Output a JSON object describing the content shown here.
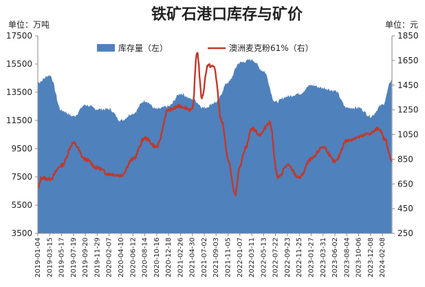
{
  "chart_data": {
    "type": "area+line",
    "title": "铁矿石港口库存与矿价",
    "left_unit": "单位：万吨",
    "right_unit": "单位：元",
    "legend_position": "top",
    "grid": false,
    "y_left": {
      "lim": [
        3500,
        17500
      ],
      "ticks": [
        "3500",
        "5500",
        "7500",
        "9500",
        "11500",
        "13500",
        "15500",
        "17500"
      ]
    },
    "y_right": {
      "lim": [
        250,
        1850
      ],
      "ticks": [
        "250",
        "450",
        "650",
        "850",
        "1050",
        "1250",
        "1450",
        "1650",
        "1850"
      ]
    },
    "x_ticks": [
      "2019-01-04",
      "2019-03-15",
      "2019-05-17",
      "2019-07-19",
      "2019-09-20",
      "2019-11-29",
      "2020-02-07",
      "2020-04-10",
      "2020-06-12",
      "2020-08-14",
      "2020-10-16",
      "2020-12-18",
      "2021-02-26",
      "2021-04-30",
      "2021-07-02",
      "2021-09-03",
      "2021-11-05",
      "2022-01-07",
      "2022-03-11",
      "2022-05-13",
      "2022-07-22",
      "2022-09-23",
      "2022-11-25",
      "2023-01-27",
      "2023-03-31",
      "2023-06-02",
      "2023-08-04",
      "2023-10-06",
      "2023-12-08",
      "2024-02-08"
    ],
    "series": [
      {
        "name": "库存量（左）",
        "axis": "left",
        "color": "#4f81bd",
        "t": [
          0,
          1,
          2,
          3,
          4,
          5,
          6,
          7,
          8,
          9,
          10,
          11,
          12,
          13,
          14,
          15,
          16,
          17,
          18,
          19,
          20,
          21,
          22,
          23,
          24,
          25,
          26,
          27,
          28,
          29,
          29.8
        ],
        "values": [
          14200,
          14700,
          12200,
          11800,
          12600,
          12300,
          12300,
          11500,
          12000,
          12900,
          12300,
          12500,
          13400,
          13000,
          12400,
          12800,
          14200,
          15600,
          15800,
          15000,
          12800,
          13200,
          13400,
          14000,
          13800,
          13600,
          12400,
          12400,
          11800,
          12600,
          14400
        ]
      },
      {
        "name": "澳洲麦克粉61%（右）",
        "axis": "right",
        "color": "#c0392b",
        "t": [
          0,
          0.3,
          1,
          2,
          3,
          4,
          5,
          6,
          7,
          8,
          9,
          10,
          11,
          12,
          13,
          13.4,
          13.8,
          14.3,
          14.8,
          15.5,
          16,
          16.6,
          17,
          17.5,
          18,
          18.7,
          19.5,
          20.2,
          21,
          22,
          23,
          24,
          25,
          26,
          27,
          28,
          28.7,
          29.2,
          29.8
        ],
        "values": [
          610,
          700,
          690,
          800,
          980,
          850,
          780,
          730,
          720,
          850,
          1020,
          950,
          1250,
          1280,
          1250,
          1720,
          1350,
          1610,
          1600,
          1150,
          850,
          560,
          800,
          950,
          1100,
          1050,
          1150,
          700,
          800,
          700,
          850,
          950,
          830,
          1000,
          1030,
          1060,
          1100,
          1010,
          830
        ]
      }
    ]
  }
}
